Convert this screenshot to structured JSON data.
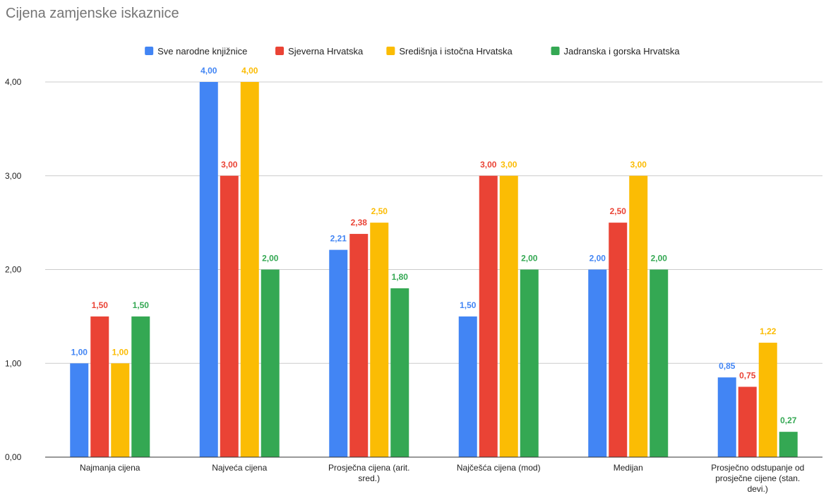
{
  "chart_data": {
    "type": "bar",
    "title": "Cijena zamjenske iskaznice",
    "xlabel": "",
    "ylabel": "",
    "ylim": [
      0,
      4
    ],
    "yticks": [
      "0,00",
      "1,00",
      "2,00",
      "3,00",
      "4,00"
    ],
    "grid": true,
    "legend_position": "top",
    "categories": [
      [
        "Najmanja cijena"
      ],
      [
        "Najveća cijena"
      ],
      [
        "Prosječna cijena (arit.",
        "sred.)"
      ],
      [
        "Najčešća cijena (mod)"
      ],
      [
        "Medijan"
      ],
      [
        "Prosječno odstupanje od",
        "prosječne cijene (stan.",
        "devi.)"
      ]
    ],
    "series": [
      {
        "name": "Sve narodne knjižnice",
        "color": "#4285F4",
        "values": [
          1.0,
          4.0,
          2.21,
          1.5,
          2.0,
          0.85
        ],
        "labels": [
          "1,00",
          "4,00",
          "2,21",
          "1,50",
          "2,00",
          "0,85"
        ]
      },
      {
        "name": "Sjeverna Hrvatska",
        "color": "#EA4335",
        "values": [
          1.5,
          3.0,
          2.38,
          3.0,
          2.5,
          0.75
        ],
        "labels": [
          "1,50",
          "3,00",
          "2,38",
          "3,00",
          "2,50",
          "0,75"
        ]
      },
      {
        "name": "Središnja i istočna Hrvatska",
        "color": "#FBBC04",
        "values": [
          1.0,
          4.0,
          2.5,
          3.0,
          3.0,
          1.22
        ],
        "labels": [
          "1,00",
          "4,00",
          "2,50",
          "3,00",
          "3,00",
          "1,22"
        ]
      },
      {
        "name": "Jadranska i gorska Hrvatska",
        "color": "#34A853",
        "values": [
          1.5,
          2.0,
          1.8,
          2.0,
          2.0,
          0.27
        ],
        "labels": [
          "1,50",
          "2,00",
          "1,80",
          "2,00",
          "2,00",
          "0,27"
        ]
      }
    ]
  }
}
